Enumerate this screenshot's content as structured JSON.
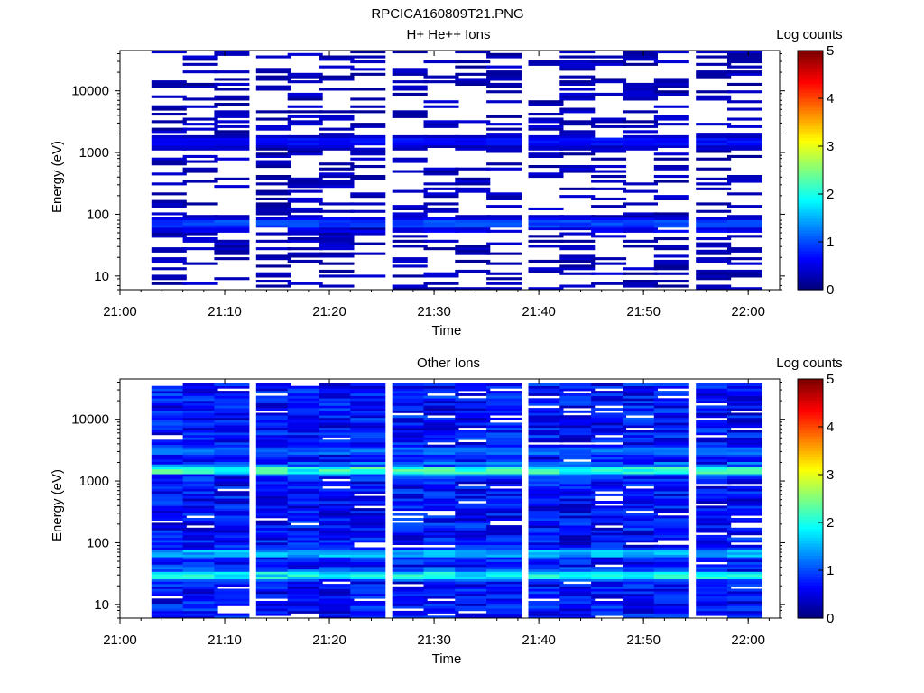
{
  "figure": {
    "title": "RPCICA160809T21.PNG"
  },
  "chart_data": [
    {
      "type": "heatmap",
      "title": "H+ He++ Ions",
      "xlabel": "Time",
      "ylabel": "Energy (eV)",
      "x_ticks": [
        "21:00",
        "21:10",
        "21:20",
        "21:30",
        "21:40",
        "21:50",
        "22:00"
      ],
      "xlim": [
        "21:00",
        "22:03"
      ],
      "y_scale": "log",
      "y_ticks": [
        "10",
        "100",
        "1000",
        "10000"
      ],
      "ylim": [
        6,
        45000
      ],
      "colorbar": {
        "label": "Log counts",
        "ticks": [
          "0",
          "1",
          "2",
          "3",
          "4",
          "5"
        ],
        "range": [
          0,
          5
        ],
        "colormap": "jet"
      },
      "time_bins": [
        "21:03",
        "21:06",
        "21:09",
        "21:13",
        "21:16",
        "21:19",
        "21:22",
        "21:26",
        "21:29",
        "21:32",
        "21:35",
        "21:39",
        "21:42",
        "21:45",
        "21:48",
        "21:51",
        "21:55",
        "21:58"
      ],
      "energy_range_eV": [
        6,
        45000
      ],
      "energy_bins": 96,
      "band_features": [
        {
          "energy_eV": 70,
          "level": 1.0
        },
        {
          "energy_eV": 1500,
          "level": 0.7
        }
      ],
      "coverage": 0.35,
      "typical_level": 0.25
    },
    {
      "type": "heatmap",
      "title": "Other Ions",
      "xlabel": "Time",
      "ylabel": "Energy (eV)",
      "x_ticks": [
        "21:00",
        "21:10",
        "21:20",
        "21:30",
        "21:40",
        "21:50",
        "22:00"
      ],
      "xlim": [
        "21:00",
        "22:03"
      ],
      "y_scale": "log",
      "y_ticks": [
        "10",
        "100",
        "1000",
        "10000"
      ],
      "ylim": [
        6,
        45000
      ],
      "colorbar": {
        "label": "Log counts",
        "ticks": [
          "0",
          "1",
          "2",
          "3",
          "4",
          "5"
        ],
        "range": [
          0,
          5
        ],
        "colormap": "jet"
      },
      "time_bins": [
        "21:03",
        "21:06",
        "21:09",
        "21:13",
        "21:16",
        "21:19",
        "21:22",
        "21:26",
        "21:29",
        "21:32",
        "21:35",
        "21:39",
        "21:42",
        "21:45",
        "21:48",
        "21:51",
        "21:55",
        "21:58"
      ],
      "energy_range_eV": [
        6,
        38000
      ],
      "energy_bins": 96,
      "band_features": [
        {
          "energy_eV": 1550,
          "level": 2.2
        },
        {
          "energy_eV": 30,
          "level": 2.0
        },
        {
          "energy_eV": 65,
          "level": 1.6
        },
        {
          "energy_eV": 3000,
          "level": 1.2
        }
      ],
      "coverage": 0.92,
      "typical_level": 0.6
    }
  ]
}
